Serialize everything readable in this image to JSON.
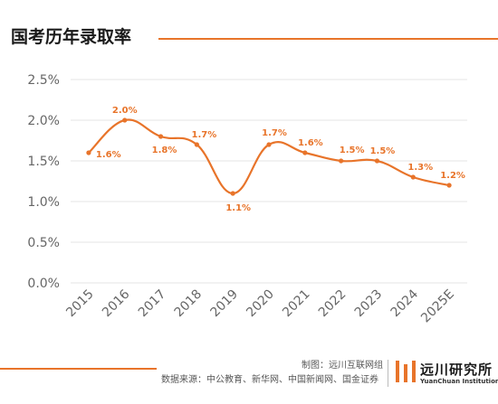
{
  "colors": {
    "accent": "#E8742A",
    "grid": "#e6e6e6",
    "axis_text": "#666666",
    "title": "#1a1a1a"
  },
  "header": {
    "title": "国考历年录取率"
  },
  "footer": {
    "credit": "制图：远川互联网组",
    "source": "数据来源：中公教育、新华网、中国新闻网、国金证券"
  },
  "logo": {
    "name_cn": "远川研究所",
    "name_en": "YuanChuan Institution",
    "icon": "yuanchuan-logo-icon"
  },
  "chart_data": {
    "type": "line",
    "categories": [
      "2015",
      "2016",
      "2017",
      "2018",
      "2019",
      "2020",
      "2021",
      "2022",
      "2023",
      "2024",
      "2025E"
    ],
    "values": [
      1.6,
      2.0,
      1.8,
      1.7,
      1.1,
      1.7,
      1.6,
      1.5,
      1.5,
      1.3,
      1.2
    ],
    "data_labels": [
      "1.6%",
      "2.0%",
      "1.8%",
      "1.7%",
      "1.1%",
      "1.7%",
      "1.6%",
      "1.5%",
      "1.5%",
      "1.3%",
      "1.2%"
    ],
    "y_ticks": [
      0.0,
      0.5,
      1.0,
      1.5,
      2.0,
      2.5
    ],
    "y_tick_labels": [
      "0.0%",
      "0.5%",
      "1.0%",
      "1.5%",
      "2.0%",
      "2.5%"
    ],
    "ylim": [
      0,
      2.5
    ],
    "grid": true,
    "smooth": true,
    "legend": false,
    "xlabel": "",
    "ylabel": ""
  }
}
